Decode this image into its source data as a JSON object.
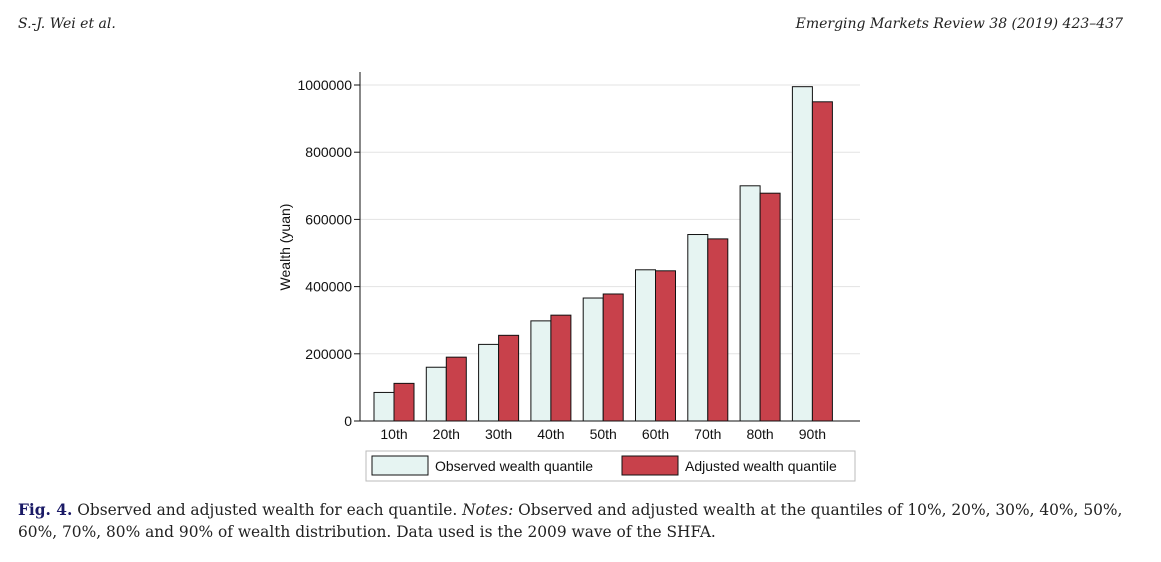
{
  "header": {
    "left": "S.-J. Wei et al.",
    "right": "Emerging Markets Review 38 (2019) 423–437"
  },
  "caption": {
    "label": "Fig. 4.",
    "text": " Observed and adjusted wealth for each quantile. ",
    "notes_label": "Notes:",
    "notes_text": " Observed and adjusted wealth at the quantiles of 10%, 20%, 30%, 40%, 50%, 60%, 70%, 80% and 90% of wealth distribution. Data used is the 2009 wave of the SHFA."
  },
  "chart_data": {
    "type": "bar",
    "categories": [
      "10th",
      "20th",
      "30th",
      "40th",
      "50th",
      "60th",
      "70th",
      "80th",
      "90th"
    ],
    "series": [
      {
        "name": "Observed wealth quantile",
        "color": "#e6f4f2",
        "values": [
          85000,
          160000,
          228000,
          298000,
          366000,
          450000,
          555000,
          700000,
          995000
        ]
      },
      {
        "name": "Adjusted wealth quantile",
        "color": "#c8414b",
        "values": [
          112000,
          190000,
          255000,
          315000,
          378000,
          447000,
          542000,
          678000,
          950000
        ]
      }
    ],
    "ylabel": "Wealth (yuan)",
    "xlabel": "",
    "ylim": [
      0,
      1000000
    ],
    "yticks": [
      "0",
      "200000",
      "400000",
      "600000",
      "800000",
      "1000000"
    ],
    "ytick_values": [
      0,
      200000,
      400000,
      600000,
      800000,
      1000000
    ],
    "grid": true,
    "legend": "bottom"
  }
}
